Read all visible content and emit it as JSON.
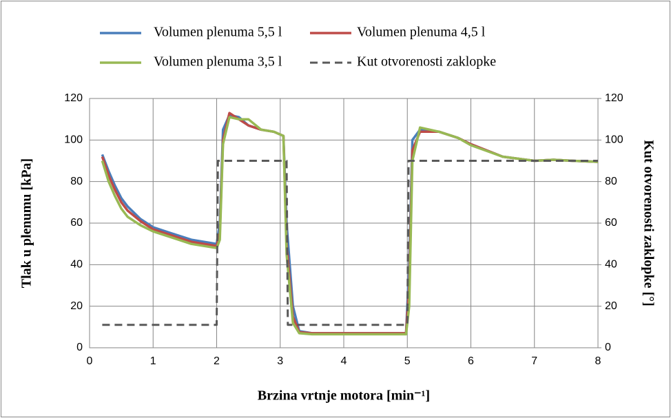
{
  "chart_data": {
    "type": "line",
    "xlabel": "Brzina vrtnje motora [min⁻¹]",
    "ylabel": "Tlak u plenumu [kPa]",
    "y2label": "Kut otvorenosti zaklopke [°]",
    "x": [
      0.2,
      0.3,
      0.4,
      0.5,
      0.6,
      0.8,
      1.0,
      1.3,
      1.6,
      2.0,
      2.05,
      2.1,
      2.2,
      2.35,
      2.5,
      2.7,
      2.9,
      3.05,
      3.1,
      3.2,
      3.3,
      3.5,
      4.0,
      4.98,
      5.03,
      5.08,
      5.2,
      5.5,
      5.8,
      6.0,
      6.5,
      7.0,
      7.3,
      7.6,
      8.0
    ],
    "series": [
      {
        "name": "Volumen plenuma 5,5 l",
        "color": "#4a7ebb",
        "values": [
          93,
          85,
          78,
          72,
          68,
          62,
          58,
          55,
          52,
          50,
          60,
          105,
          112,
          111,
          107,
          105,
          104,
          102,
          60,
          20,
          8,
          7,
          7,
          7,
          40,
          100,
          105,
          104,
          101,
          98,
          92,
          90,
          90.5,
          90,
          89.5
        ]
      },
      {
        "name": "Volumen plenuma 4,5 l",
        "color": "#be4b48",
        "values": [
          92,
          83,
          76,
          70,
          66,
          61,
          57,
          54,
          51,
          49,
          55,
          100,
          113,
          110,
          107,
          105,
          104,
          102,
          50,
          15,
          7.5,
          7,
          7,
          7,
          30,
          95,
          104,
          104,
          101,
          98,
          92,
          90,
          90.5,
          90,
          89.5
        ]
      },
      {
        "name": "Volumen plenuma 3,5 l",
        "color": "#98b954",
        "values": [
          90,
          80,
          73,
          67,
          63,
          59,
          56,
          53,
          50,
          48,
          52,
          98,
          111,
          110,
          110,
          105,
          104,
          102,
          45,
          12,
          7,
          6.5,
          6.5,
          6.5,
          20,
          90,
          106,
          104,
          101,
          97.5,
          92,
          90,
          90.5,
          90,
          89.5
        ]
      },
      {
        "name": "Kut otvorenosti zaklopke",
        "color": "#595959",
        "dashed": true,
        "axis": "y2",
        "x": [
          0.2,
          2.0,
          2.02,
          3.1,
          3.12,
          5.0,
          5.02,
          8.0
        ],
        "values": [
          11,
          11,
          90,
          90,
          11,
          11,
          90,
          90
        ]
      }
    ],
    "xlim": [
      0,
      8
    ],
    "xticks": [
      0,
      1,
      2,
      3,
      4,
      5,
      6,
      7,
      8
    ],
    "ylim": [
      0,
      120
    ],
    "yticks": [
      0,
      20,
      40,
      60,
      80,
      100,
      120
    ],
    "y2lim": [
      0,
      120
    ],
    "y2ticks": [
      0,
      20,
      40,
      60,
      80,
      100,
      120
    ],
    "grid": true,
    "legend": "top"
  }
}
